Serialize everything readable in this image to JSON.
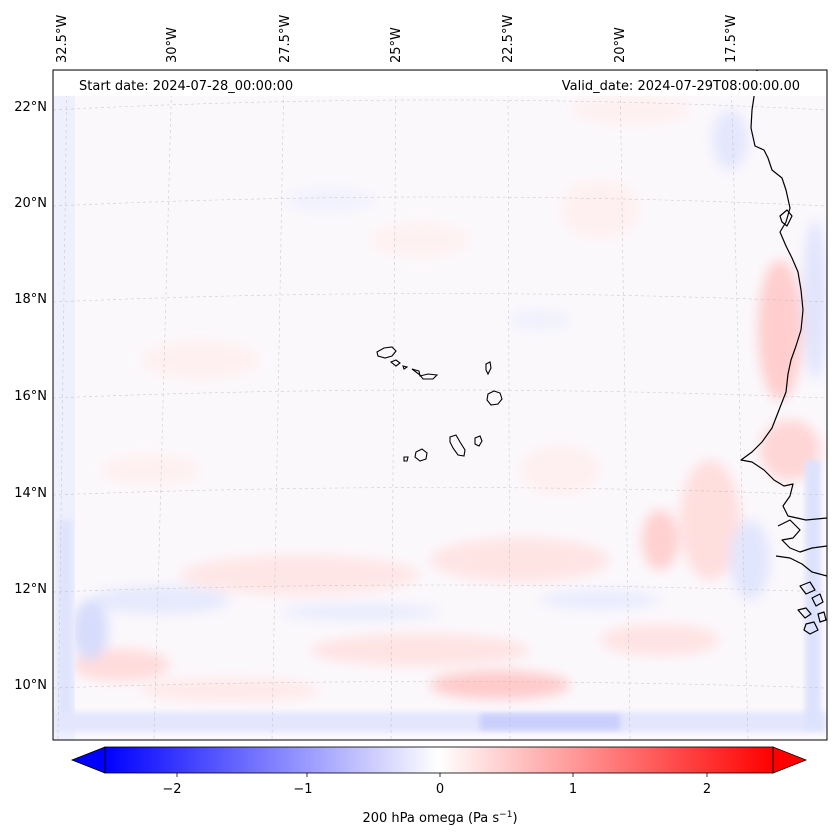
{
  "map": {
    "header": {
      "start": "Start date: 2024-07-28_00:00:00",
      "valid": "Valid_date: 2024-07-29T08:00:00.00"
    },
    "lon_labels": [
      "32.5°W",
      "30°W",
      "27.5°W",
      "25°W",
      "22.5°W",
      "20°W",
      "17.5°W"
    ],
    "lat_labels": [
      "22°N",
      "20°N",
      "18°N",
      "16°N",
      "14°N",
      "12°N",
      "10°N"
    ],
    "features": [
      "cape-verde-islands",
      "west-africa-coastline"
    ],
    "field_colors": {
      "negative": "#0000ff",
      "zero": "#ffffff",
      "positive": "#ff0000"
    }
  },
  "colorbar": {
    "ticks": [
      "−2",
      "−1",
      "0",
      "1",
      "2"
    ],
    "label_prefix": "200 hPa omega (Pa s",
    "label_sup": "−1",
    "label_suffix": ")",
    "range": [
      -2.7,
      2.7
    ],
    "extend": "both"
  }
}
